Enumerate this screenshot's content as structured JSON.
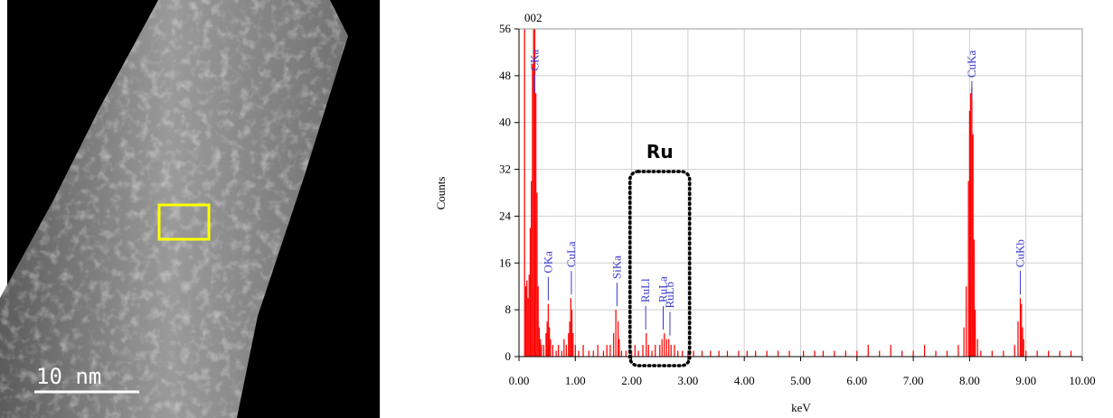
{
  "image": {
    "scale_bar_label": "10 nm"
  },
  "chart_data": {
    "type": "bar",
    "title": "002",
    "x_label": "keV",
    "y_label": "Counts",
    "color": "#ff0000",
    "annotation_color": "#3a3ad0",
    "grid": true,
    "xlim": [
      0,
      10
    ],
    "ylim": [
      0,
      56
    ],
    "xticks": [
      {
        "value": 0,
        "label": "0.00"
      },
      {
        "value": 1,
        "label": "1.00"
      },
      {
        "value": 2,
        "label": "2.00"
      },
      {
        "value": 3,
        "label": "3.00"
      },
      {
        "value": 4,
        "label": "4.00"
      },
      {
        "value": 5,
        "label": "5.00"
      },
      {
        "value": 6,
        "label": "6.00"
      },
      {
        "value": 7,
        "label": "7.00"
      },
      {
        "value": 8,
        "label": "8.00"
      },
      {
        "value": 9,
        "label": "9.00"
      },
      {
        "value": 10,
        "label": "10.00"
      }
    ],
    "yticks": [
      0,
      8,
      16,
      24,
      32,
      40,
      48,
      56
    ],
    "x": [
      0.1,
      0.12,
      0.14,
      0.16,
      0.18,
      0.2,
      0.22,
      0.24,
      0.26,
      0.28,
      0.3,
      0.32,
      0.34,
      0.36,
      0.38,
      0.4,
      0.44,
      0.48,
      0.5,
      0.52,
      0.54,
      0.56,
      0.6,
      0.66,
      0.7,
      0.76,
      0.8,
      0.84,
      0.88,
      0.9,
      0.92,
      0.94,
      0.96,
      1.0,
      1.06,
      1.14,
      1.24,
      1.32,
      1.4,
      1.5,
      1.56,
      1.62,
      1.68,
      1.72,
      1.76,
      1.78,
      1.82,
      1.9,
      2.0,
      2.06,
      2.12,
      2.2,
      2.26,
      2.3,
      2.36,
      2.42,
      2.5,
      2.54,
      2.58,
      2.62,
      2.66,
      2.7,
      2.76,
      2.82,
      2.9,
      3.0,
      3.1,
      3.25,
      3.4,
      3.55,
      3.7,
      3.9,
      4.05,
      4.2,
      4.4,
      4.6,
      4.8,
      5.05,
      5.25,
      5.4,
      5.6,
      5.8,
      6.0,
      6.2,
      6.4,
      6.6,
      6.8,
      7.0,
      7.2,
      7.4,
      7.6,
      7.8,
      7.9,
      7.94,
      7.98,
      8.0,
      8.02,
      8.04,
      8.06,
      8.08,
      8.1,
      8.14,
      8.2,
      8.4,
      8.6,
      8.8,
      8.86,
      8.9,
      8.92,
      8.94,
      8.96,
      9.0,
      9.2,
      9.4,
      9.6,
      9.8
    ],
    "values": [
      56,
      12,
      13,
      10,
      14,
      22,
      30,
      50,
      56,
      56,
      45,
      28,
      12,
      5,
      3,
      2,
      2,
      4,
      6,
      9,
      5,
      3,
      2,
      1,
      2,
      1,
      3,
      2,
      4,
      6,
      10,
      8,
      4,
      2,
      1,
      2,
      1,
      1,
      2,
      1,
      2,
      2,
      4,
      8,
      6,
      3,
      1,
      1,
      1,
      2,
      1,
      2,
      4,
      2,
      1,
      2,
      2,
      3,
      4,
      3,
      3,
      2,
      2,
      1,
      1,
      1,
      1,
      1,
      1,
      1,
      1,
      1,
      1,
      1,
      1,
      1,
      1,
      1,
      1,
      1,
      1,
      1,
      1,
      2,
      1,
      2,
      1,
      1,
      2,
      1,
      1,
      2,
      5,
      12,
      30,
      42,
      45,
      46,
      38,
      20,
      8,
      3,
      1,
      1,
      1,
      2,
      6,
      10,
      9,
      5,
      3,
      1,
      1,
      1,
      1,
      1
    ],
    "annotations": [
      {
        "text": "CKa",
        "x": 0.28
      },
      {
        "text": "OKa",
        "x": 0.52
      },
      {
        "text": "CuLa",
        "x": 0.93
      },
      {
        "text": "SiKa",
        "x": 1.74
      },
      {
        "text": "RuLl",
        "x": 2.25
      },
      {
        "text": "RuLa",
        "x": 2.56
      },
      {
        "text": "RuLb",
        "x": 2.68
      },
      {
        "text": "CuKa",
        "x": 8.04
      },
      {
        "text": "CuKb",
        "x": 8.9
      }
    ],
    "region": {
      "label": "Ru",
      "x": [
        1.97,
        3.03
      ]
    }
  }
}
